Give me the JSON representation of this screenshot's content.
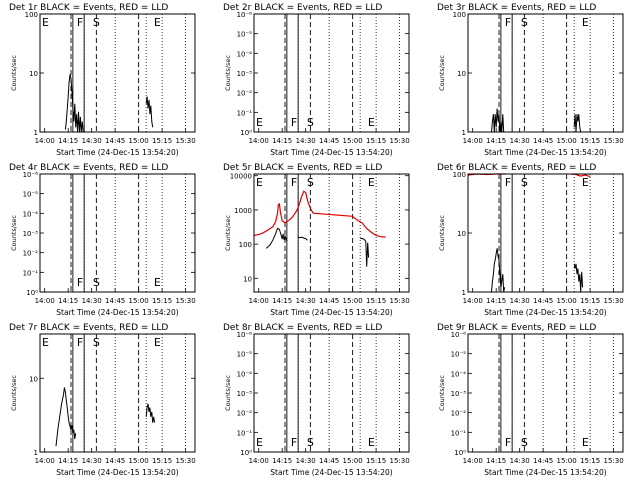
{
  "figure": {
    "background": "#ffffff",
    "event_color": "#000000",
    "lld_color": "#e00000"
  },
  "chart_data": [
    {
      "type": "line",
      "title": "Det 1r BLACK = Events, RED = LLD",
      "xlabel": "Start Time (24-Dec-15 13:54:20)",
      "ylabel": "Counts/sec",
      "xtick_labels": [
        "14:00",
        "14:15",
        "14:30",
        "14:45",
        "15:00",
        "15:15",
        "15:30"
      ],
      "ytick_labels": [
        "1",
        "10",
        "100"
      ],
      "ylog": [
        0,
        2
      ],
      "marker_labels": [
        "E",
        "F",
        "S",
        "E"
      ],
      "series": [
        {
          "kind": "events",
          "values": [
            [
              14.22,
              1.1
            ],
            [
              14.23,
              1.5
            ],
            [
              14.24,
              2.4
            ],
            [
              14.25,
              4.0
            ],
            [
              14.26,
              7.0
            ],
            [
              14.27,
              9.5
            ],
            [
              14.28,
              8.0
            ],
            [
              14.29,
              5.0
            ],
            [
              14.3,
              2.5
            ],
            [
              14.31,
              1.5
            ],
            [
              14.32,
              3.0
            ],
            [
              14.33,
              1.2
            ],
            [
              14.34,
              2.0
            ],
            [
              14.35,
              1.0
            ],
            [
              14.36,
              2.2
            ],
            [
              14.37,
              1.0
            ],
            [
              14.38,
              1.8
            ],
            [
              14.39,
              1.0
            ],
            [
              14.4,
              1.5
            ],
            [
              14.41,
              1.0
            ]
          ]
        },
        {
          "kind": "events",
          "values": [
            [
              15.08,
              3.0
            ],
            [
              15.09,
              4.0
            ],
            [
              15.1,
              2.5
            ],
            [
              15.11,
              3.5
            ],
            [
              15.12,
              2.0
            ],
            [
              15.13,
              2.8
            ],
            [
              15.14,
              1.5
            ],
            [
              15.15,
              1.2
            ]
          ]
        }
      ]
    },
    {
      "type": "line",
      "title": "Det 2r BLACK = Events, RED = LLD",
      "xlabel": "Start Time (24-Dec-15 13:54:20)",
      "ylabel": "Counts/sec",
      "xtick_labels": [
        "14:00",
        "14:15",
        "14:30",
        "14:45",
        "15:00",
        "15:15",
        "15:30"
      ],
      "ytick_labels": [
        "10⁰",
        "10⁻¹",
        "10⁻²",
        "10⁻³",
        "10⁻⁴",
        "10⁻⁵",
        "10⁻⁶"
      ],
      "ylog": [
        0,
        6
      ],
      "marker_labels": [
        "E",
        "F",
        "S",
        "E"
      ],
      "series": []
    },
    {
      "type": "line",
      "title": "Det 3r BLACK = Events, RED = LLD",
      "xlabel": "Start Time (24-Dec-15 13:54:20)",
      "ylabel": "Counts/sec",
      "xtick_labels": [
        "14:00",
        "14:15",
        "14:30",
        "14:45",
        "15:00",
        "15:15",
        "15:30"
      ],
      "ytick_labels": [
        "1",
        "10",
        "100"
      ],
      "ylog": [
        0,
        2
      ],
      "marker_labels": [
        "F",
        "S",
        "E"
      ],
      "series": [
        {
          "kind": "events",
          "values": [
            [
              14.2,
              1.0
            ],
            [
              14.21,
              1.5
            ],
            [
              14.22,
              2.0
            ],
            [
              14.23,
              1.0
            ],
            [
              14.24,
              2.0
            ],
            [
              14.25,
              1.2
            ],
            [
              14.26,
              2.5
            ],
            [
              14.27,
              1.5
            ],
            [
              14.28,
              2.0
            ],
            [
              14.29,
              1.0
            ],
            [
              14.3,
              1.5
            ],
            [
              14.31,
              1.0
            ],
            [
              14.32,
              2.0
            ],
            [
              14.33,
              1.0
            ]
          ]
        },
        {
          "kind": "events",
          "values": [
            [
              15.08,
              1.2
            ],
            [
              15.09,
              2.0
            ],
            [
              15.1,
              1.0
            ],
            [
              15.11,
              2.0
            ],
            [
              15.12,
              1.5
            ],
            [
              15.13,
              2.0
            ],
            [
              15.14,
              1.2
            ],
            [
              15.15,
              1.0
            ]
          ]
        }
      ]
    },
    {
      "type": "line",
      "title": "Det 4r BLACK = Events, RED = LLD",
      "xlabel": "Start Time (24-Dec-15 13:54:20)",
      "ylabel": "Counts/sec",
      "xtick_labels": [
        "14:00",
        "14:15",
        "14:30",
        "14:45",
        "15:00",
        "15:15",
        "15:30"
      ],
      "ytick_labels": [
        "10⁰",
        "10⁻¹",
        "10⁻²",
        "10⁻³",
        "10⁻⁴",
        "10⁻⁵",
        "10⁻⁶"
      ],
      "ylog": [
        0,
        6
      ],
      "marker_labels": [
        "F",
        "S",
        "E"
      ],
      "series": []
    },
    {
      "type": "line",
      "title": "Det 5r BLACK = Events, RED = LLD",
      "xlabel": "Start Time (24-Dec-15 13:54:20)",
      "ylabel": "Counts/sec",
      "xtick_labels": [
        "14:00",
        "14:15",
        "14:30",
        "14:45",
        "15:00",
        "15:15",
        "15:30"
      ],
      "ytick_labels": [
        "10",
        "100",
        "1000",
        "10000"
      ],
      "ylog": [
        0.6,
        4.05
      ],
      "marker_labels": [
        "E",
        "F",
        "S",
        "E"
      ],
      "series": [
        {
          "kind": "lld",
          "values": [
            [
              13.95,
              180
            ],
            [
              14.0,
              190
            ],
            [
              14.05,
              215
            ],
            [
              14.1,
              260
            ],
            [
              14.15,
              320
            ],
            [
              14.18,
              450
            ],
            [
              14.2,
              800
            ],
            [
              14.21,
              1450
            ],
            [
              14.22,
              1500
            ],
            [
              14.23,
              900
            ],
            [
              14.25,
              480
            ],
            [
              14.28,
              420
            ],
            [
              14.3,
              450
            ],
            [
              14.33,
              520
            ],
            [
              14.36,
              620
            ],
            [
              14.38,
              750
            ],
            [
              14.4,
              900
            ],
            [
              14.42,
              1200
            ],
            [
              14.44,
              1700
            ],
            [
              14.46,
              2600
            ],
            [
              14.48,
              3500
            ],
            [
              14.5,
              3200
            ],
            [
              14.52,
              1900
            ],
            [
              14.55,
              1100
            ],
            [
              14.58,
              800
            ],
            [
              15.0,
              650
            ],
            [
              15.03,
              550
            ],
            [
              15.06,
              480
            ],
            [
              15.1,
              420
            ],
            [
              15.13,
              330
            ],
            [
              15.16,
              270
            ],
            [
              15.2,
              220
            ],
            [
              15.25,
              180
            ],
            [
              15.3,
              165
            ],
            [
              15.35,
              160
            ]
          ]
        },
        {
          "kind": "events",
          "values": [
            [
              14.08,
              75
            ],
            [
              14.12,
              95
            ],
            [
              14.15,
              130
            ],
            [
              14.18,
              200
            ],
            [
              14.2,
              290
            ],
            [
              14.22,
              270
            ],
            [
              14.24,
              180
            ],
            [
              14.25,
              140
            ],
            [
              14.26,
              200
            ],
            [
              14.27,
              130
            ],
            [
              14.28,
              170
            ],
            [
              14.29,
              150
            ],
            [
              14.3,
              120
            ]
          ]
        },
        {
          "kind": "events",
          "values": [
            [
              14.42,
              160
            ],
            [
              14.44,
              155
            ],
            [
              14.46,
              160
            ],
            [
              14.48,
              150
            ],
            [
              14.5,
              145
            ],
            [
              14.52,
              130
            ]
          ]
        },
        {
          "kind": "events",
          "values": [
            [
              15.08,
              150
            ],
            [
              15.1,
              145
            ],
            [
              15.12,
              140
            ],
            [
              15.13,
              130
            ],
            [
              15.14,
              120
            ],
            [
              15.15,
              22
            ],
            [
              15.16,
              110
            ],
            [
              15.17,
              40
            ]
          ]
        }
      ]
    },
    {
      "type": "line",
      "title": "Det 6r BLACK = Events, RED = LLD",
      "xlabel": "Start Time (24-Dec-15 13:54:20)",
      "ylabel": "Counts/sec",
      "xtick_labels": [
        "14:00",
        "14:15",
        "14:30",
        "14:45",
        "15:00",
        "15:15",
        "15:30"
      ],
      "ytick_labels": [
        "1",
        "10",
        "100"
      ],
      "ylog": [
        0,
        2
      ],
      "marker_labels": [
        "F",
        "S",
        "E"
      ],
      "series": [
        {
          "kind": "lld",
          "values": [
            [
              13.95,
              96
            ],
            [
              14.05,
              100
            ],
            [
              14.15,
              98
            ],
            [
              14.25,
              110
            ],
            [
              14.3,
              104
            ],
            [
              14.35,
              100
            ]
          ]
        },
        {
          "kind": "lld",
          "values": [
            [
              15.05,
              102
            ],
            [
              15.1,
              98
            ],
            [
              15.15,
              92
            ],
            [
              15.2,
              96
            ],
            [
              15.25,
              90
            ]
          ]
        },
        {
          "kind": "events",
          "values": [
            [
              14.2,
              1.0
            ],
            [
              14.21,
              1.5
            ],
            [
              14.22,
              2.0
            ],
            [
              14.23,
              3.0
            ],
            [
              14.24,
              3.5
            ],
            [
              14.25,
              4.5
            ],
            [
              14.26,
              5.5
            ],
            [
              14.27,
              4.0
            ],
            [
              14.28,
              3.5
            ],
            [
              14.29,
              2.0
            ],
            [
              14.3,
              1.2
            ],
            [
              14.31,
              1.5
            ],
            [
              14.32,
              2.0
            ],
            [
              14.33,
              1.0
            ],
            [
              14.34,
              1.2
            ]
          ]
        },
        {
          "kind": "events",
          "values": [
            [
              15.08,
              3.0
            ],
            [
              15.09,
              2.5
            ],
            [
              15.1,
              3.0
            ],
            [
              15.11,
              2.0
            ],
            [
              15.12,
              2.5
            ],
            [
              15.13,
              1.5
            ],
            [
              15.14,
              2.0
            ],
            [
              15.15,
              1.0
            ],
            [
              15.16,
              2.2
            ],
            [
              15.17,
              1.2
            ]
          ]
        }
      ]
    },
    {
      "type": "line",
      "title": "Det 7r BLACK = Events, RED = LLD",
      "xlabel": "Start Time (24-Dec-15 13:54:20)",
      "ylabel": "Counts/sec",
      "xtick_labels": [
        "14:00",
        "14:15",
        "14:30",
        "14:45",
        "15:00",
        "15:15",
        "15:30"
      ],
      "ytick_labels": [
        "1",
        "10"
      ],
      "ylog": [
        0,
        1.6
      ],
      "marker_labels": [
        "E",
        "F",
        "S",
        "E"
      ],
      "series": [
        {
          "kind": "events",
          "values": [
            [
              14.12,
              1.2
            ],
            [
              14.14,
              2.0
            ],
            [
              14.16,
              3.0
            ],
            [
              14.18,
              4.5
            ],
            [
              14.2,
              6.0
            ],
            [
              14.21,
              7.5
            ],
            [
              14.22,
              6.5
            ],
            [
              14.23,
              5.0
            ],
            [
              14.24,
              4.0
            ],
            [
              14.25,
              3.0
            ],
            [
              14.26,
              2.5
            ],
            [
              14.27,
              2.2
            ],
            [
              14.28,
              2.0
            ],
            [
              14.29,
              2.3
            ],
            [
              14.3,
              1.8
            ],
            [
              14.31,
              2.0
            ],
            [
              14.32,
              1.5
            ],
            [
              14.33,
              1.8
            ]
          ]
        },
        {
          "kind": "events",
          "values": [
            [
              15.08,
              3.0
            ],
            [
              15.09,
              4.0
            ],
            [
              15.1,
              4.5
            ],
            [
              15.11,
              3.5
            ],
            [
              15.12,
              4.0
            ],
            [
              15.13,
              3.0
            ],
            [
              15.14,
              3.5
            ],
            [
              15.15,
              2.5
            ],
            [
              15.16,
              3.0
            ],
            [
              15.17,
              2.5
            ]
          ]
        }
      ]
    },
    {
      "type": "line",
      "title": "Det 8r BLACK = Events, RED = LLD",
      "xlabel": "Start Time (24-Dec-15 13:54:20)",
      "ylabel": "Counts/sec",
      "xtick_labels": [
        "14:00",
        "14:15",
        "14:30",
        "14:45",
        "15:00",
        "15:15",
        "15:30"
      ],
      "ytick_labels": [
        "10⁰",
        "10⁻¹",
        "10⁻²",
        "10⁻³",
        "10⁻⁴",
        "10⁻⁵",
        "10⁻⁶"
      ],
      "ylog": [
        0,
        6
      ],
      "marker_labels": [
        "E",
        "F",
        "S",
        "E"
      ],
      "series": []
    },
    {
      "type": "line",
      "title": "Det 9r BLACK = Events, RED = LLD",
      "xlabel": "Start Time (24-Dec-15 13:54:20)",
      "ylabel": "Counts/sec",
      "xtick_labels": [
        "14:00",
        "14:15",
        "14:30",
        "14:45",
        "15:00",
        "15:15",
        "15:30"
      ],
      "ytick_labels": [
        "10⁰",
        "10⁻¹",
        "10⁻²",
        "10⁻³",
        "10⁻⁴",
        "10⁻⁵",
        "10⁻⁶"
      ],
      "ylog": [
        0,
        6
      ],
      "marker_labels": [
        "F",
        "S",
        "E"
      ],
      "series": []
    }
  ]
}
